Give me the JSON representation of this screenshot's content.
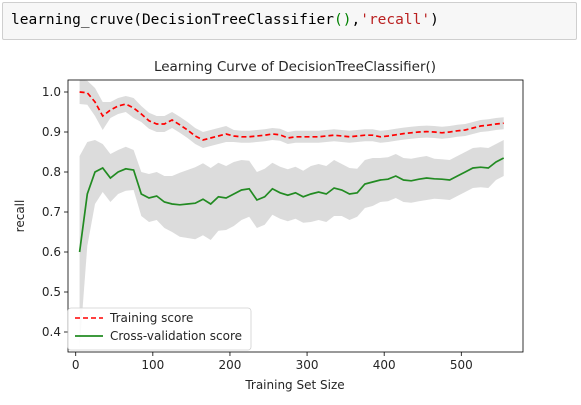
{
  "code_cell": {
    "func": "learning_cruve",
    "open_paren": "(",
    "arg_class": "DecisionTreeClassifier",
    "arg_call": "()",
    "comma": ",",
    "arg_metric": "'recall'",
    "close_paren": ")"
  },
  "chart_data": {
    "type": "line",
    "title": "Learning Curve of DecisionTreeClassifier()",
    "xlabel": "Training Set Size",
    "ylabel": "recall",
    "xlim": [
      -10,
      580
    ],
    "ylim": [
      0.35,
      1.03
    ],
    "xticks": [
      0,
      100,
      200,
      300,
      400,
      500
    ],
    "yticks": [
      0.4,
      0.5,
      0.6,
      0.7,
      0.8,
      0.9,
      1.0
    ],
    "grid": false,
    "legend_position": "lower-left",
    "x": [
      5,
      15,
      25,
      35,
      45,
      55,
      65,
      75,
      85,
      95,
      105,
      115,
      125,
      135,
      145,
      155,
      165,
      175,
      185,
      195,
      205,
      215,
      225,
      235,
      245,
      255,
      265,
      275,
      285,
      295,
      305,
      315,
      325,
      335,
      345,
      355,
      365,
      375,
      385,
      395,
      405,
      415,
      425,
      435,
      445,
      455,
      465,
      475,
      485,
      495,
      505,
      515,
      525,
      535,
      545,
      555
    ],
    "series": [
      {
        "name": "Training score",
        "color": "#ff0000",
        "dash": "dashed",
        "values": [
          1.0,
          0.998,
          0.975,
          0.94,
          0.955,
          0.965,
          0.97,
          0.96,
          0.945,
          0.928,
          0.92,
          0.92,
          0.93,
          0.918,
          0.905,
          0.89,
          0.88,
          0.885,
          0.89,
          0.895,
          0.89,
          0.888,
          0.888,
          0.89,
          0.892,
          0.895,
          0.893,
          0.885,
          0.888,
          0.888,
          0.888,
          0.888,
          0.89,
          0.892,
          0.89,
          0.888,
          0.89,
          0.892,
          0.892,
          0.888,
          0.89,
          0.893,
          0.896,
          0.898,
          0.9,
          0.901,
          0.9,
          0.898,
          0.9,
          0.903,
          0.905,
          0.91,
          0.915,
          0.917,
          0.92,
          0.922
        ],
        "band": [
          0.03,
          0.03,
          0.035,
          0.035,
          0.02,
          0.02,
          0.02,
          0.025,
          0.02,
          0.02,
          0.02,
          0.02,
          0.02,
          0.02,
          0.02,
          0.02,
          0.02,
          0.02,
          0.02,
          0.02,
          0.015,
          0.015,
          0.015,
          0.015,
          0.015,
          0.015,
          0.015,
          0.015,
          0.015,
          0.015,
          0.015,
          0.015,
          0.015,
          0.015,
          0.015,
          0.015,
          0.015,
          0.015,
          0.015,
          0.015,
          0.015,
          0.015,
          0.015,
          0.015,
          0.015,
          0.015,
          0.015,
          0.015,
          0.015,
          0.015,
          0.015,
          0.015,
          0.015,
          0.015,
          0.015,
          0.015
        ]
      },
      {
        "name": "Cross-validation score",
        "color": "#228b22",
        "dash": "solid",
        "values": [
          0.6,
          0.745,
          0.8,
          0.81,
          0.785,
          0.8,
          0.808,
          0.805,
          0.745,
          0.735,
          0.74,
          0.725,
          0.72,
          0.718,
          0.72,
          0.722,
          0.732,
          0.72,
          0.738,
          0.735,
          0.745,
          0.755,
          0.758,
          0.73,
          0.738,
          0.758,
          0.748,
          0.742,
          0.748,
          0.738,
          0.745,
          0.75,
          0.745,
          0.76,
          0.755,
          0.745,
          0.748,
          0.77,
          0.775,
          0.78,
          0.782,
          0.79,
          0.78,
          0.778,
          0.782,
          0.785,
          0.783,
          0.782,
          0.78,
          0.79,
          0.8,
          0.81,
          0.812,
          0.81,
          0.825,
          0.835
        ],
        "band": [
          0.24,
          0.13,
          0.08,
          0.06,
          0.06,
          0.055,
          0.055,
          0.05,
          0.055,
          0.06,
          0.06,
          0.065,
          0.07,
          0.08,
          0.085,
          0.09,
          0.09,
          0.09,
          0.085,
          0.08,
          0.08,
          0.075,
          0.07,
          0.07,
          0.07,
          0.065,
          0.065,
          0.065,
          0.065,
          0.065,
          0.07,
          0.07,
          0.07,
          0.07,
          0.065,
          0.065,
          0.06,
          0.06,
          0.06,
          0.055,
          0.055,
          0.055,
          0.055,
          0.055,
          0.055,
          0.055,
          0.05,
          0.05,
          0.05,
          0.05,
          0.05,
          0.05,
          0.05,
          0.05,
          0.045,
          0.045
        ]
      }
    ]
  }
}
